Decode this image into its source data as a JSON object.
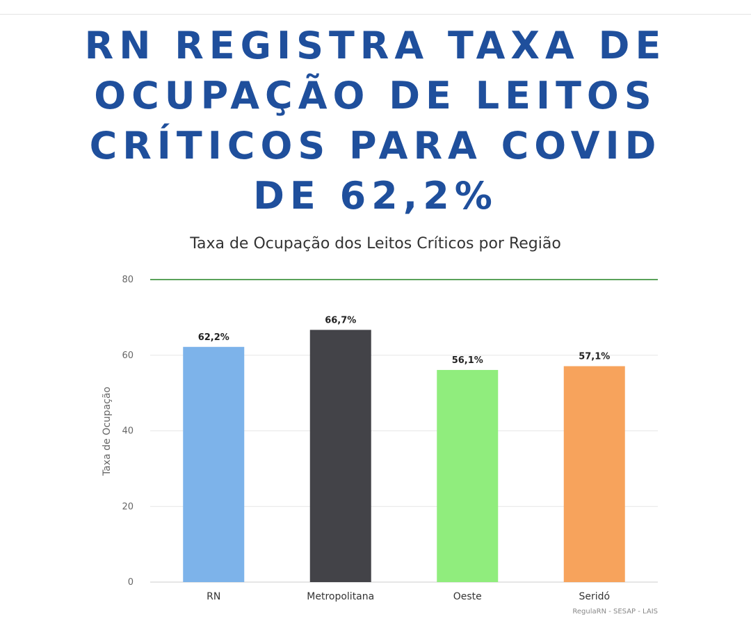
{
  "headline": {
    "lines": [
      "RN REGISTRA TAXA DE",
      "OCUPAÇÃO DE LEITOS",
      "CRÍTICOS PARA COVID",
      "DE 62,2%"
    ]
  },
  "chart_data": {
    "type": "bar",
    "title": "Taxa de Ocupação dos Leitos Críticos por Região",
    "xlabel": "",
    "ylabel": "Taxa de Ocupação",
    "ylim": [
      0,
      80
    ],
    "yticks": [
      "0",
      "20",
      "40",
      "60",
      "80"
    ],
    "categories": [
      "RN",
      "Metropolitana",
      "Oeste",
      "Seridó"
    ],
    "values": [
      62.2,
      66.7,
      56.1,
      57.1
    ],
    "data_labels": [
      "62,2%",
      "66,7%",
      "56,1%",
      "57,1%"
    ],
    "colors": [
      "#7db3ea",
      "#434348",
      "#90ed7d",
      "#f7a35c"
    ],
    "reference_line": {
      "value": 80,
      "color": "#5aa25a"
    },
    "grid": true,
    "legend": "none",
    "credit": "RegulaRN - SESAP - LAIS"
  }
}
